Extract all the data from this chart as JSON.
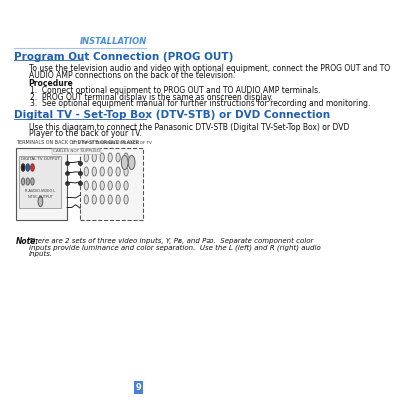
{
  "page_bg": "#ffffff",
  "header_text": "INSTALLATION",
  "header_color": "#4a90d9",
  "header_line_color": "#a0c4f0",
  "section1_title": "Program Out Connection (PROG OUT)",
  "section1_title_color": "#2060b0",
  "section1_body": "To use the television audio and video with optional equipment, connect the PROG OUT and TO\nAUDIO AMP connections on the back of the television.",
  "procedure_label": "Procedure",
  "procedure_items": [
    "Connect optional equipment to PROG OUT and TO AUDIO AMP terminals.",
    "PROG OUT terminal display is the same as onscreen display.",
    "See optional equipment manual for further instructions for recording and monitoring."
  ],
  "section2_title": "Digital TV - Set-Top Box (DTV-STB) or DVD Connection",
  "section2_title_color": "#2060b0",
  "section2_body": "Use this diagram to connect the Panasonic DTV-STB (Digital TV-Set-Top Box) or DVD\nPlayer to the back of your TV.",
  "diagram_label_left": "TERMINALS ON BACK OF DTV-STB OR DVD PLAYER",
  "diagram_label_right": "DTV INPUT TERMINALS ON BACK OF TV",
  "cables_label": "CABLES NOT SUPPLIED",
  "note_label": "Note:",
  "note_text": "There are 2 sets of three video inputs, Y, Pᴃ, and Pᴔ.  Separate component color\ninputs provide luminance and color separation.  Use the L (left) and R (right) audio\ninputs.",
  "page_number": "9",
  "page_num_bg": "#4a7fd4",
  "body_fontsize": 5.5,
  "title1_fontsize": 7.5,
  "title2_fontsize": 7.5,
  "header_fontsize": 6,
  "label_fontsize": 4.5
}
